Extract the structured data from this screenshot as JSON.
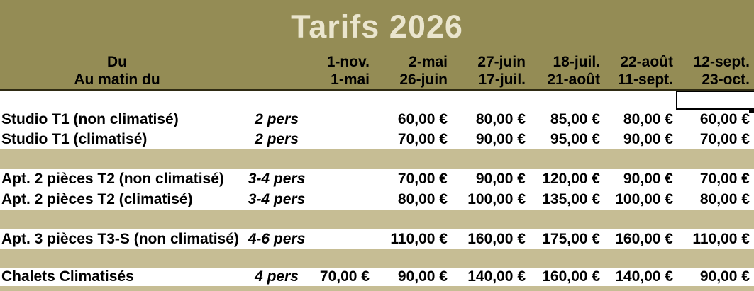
{
  "title": "Tarifs 2026",
  "colors": {
    "header_band": "#948C55",
    "separator_band": "#C6BD94",
    "title_text": "#EAE5CE",
    "body_text": "#000000",
    "row_background": "#FFFFFF",
    "header_rule": "#2F2B13"
  },
  "header": {
    "from_label": "Du",
    "to_label": "Au matin du",
    "period_starts": [
      "1-nov.",
      "2-mai",
      "27-juin",
      "18-juil.",
      "22-août",
      "12-sept."
    ],
    "period_ends": [
      "1-mai",
      "26-juin",
      "17-juil.",
      "21-août",
      "11-sept.",
      "23-oct."
    ]
  },
  "table": {
    "rows": [
      {
        "label": "Studio T1 (non climatisé)",
        "pers": "2 pers",
        "prices": [
          "",
          "60,00 €",
          "80,00 €",
          "85,00 €",
          "80,00 €",
          "60,00 €"
        ]
      },
      {
        "label": "Studio T1 (climatisé)",
        "pers": "2 pers",
        "prices": [
          "",
          "70,00 €",
          "90,00 €",
          "95,00 €",
          "90,00 €",
          "70,00 €"
        ]
      },
      {
        "label": "Apt. 2 pièces T2 (non climatisé)",
        "pers": "3-4 pers",
        "prices": [
          "",
          "70,00 €",
          "90,00 €",
          "120,00 €",
          "90,00 €",
          "70,00 €"
        ]
      },
      {
        "label": "Apt. 2 pièces T2 (climatisé)",
        "pers": "3-4 pers",
        "prices": [
          "",
          "80,00 €",
          "100,00 €",
          "135,00 €",
          "100,00 €",
          "80,00 €"
        ]
      },
      {
        "label": "Apt. 3 pièces T3-S (non climatisé)",
        "pers": "4-6 pers",
        "prices": [
          "",
          "110,00 €",
          "160,00 €",
          "175,00 €",
          "160,00 €",
          "110,00 €"
        ]
      },
      {
        "label": "Chalets Climatisés",
        "pers": "4 pers",
        "prices": [
          "70,00 €",
          "90,00 €",
          "140,00 €",
          "160,00 €",
          "140,00 €",
          "90,00 €"
        ]
      }
    ],
    "selected_cell_value": ""
  }
}
